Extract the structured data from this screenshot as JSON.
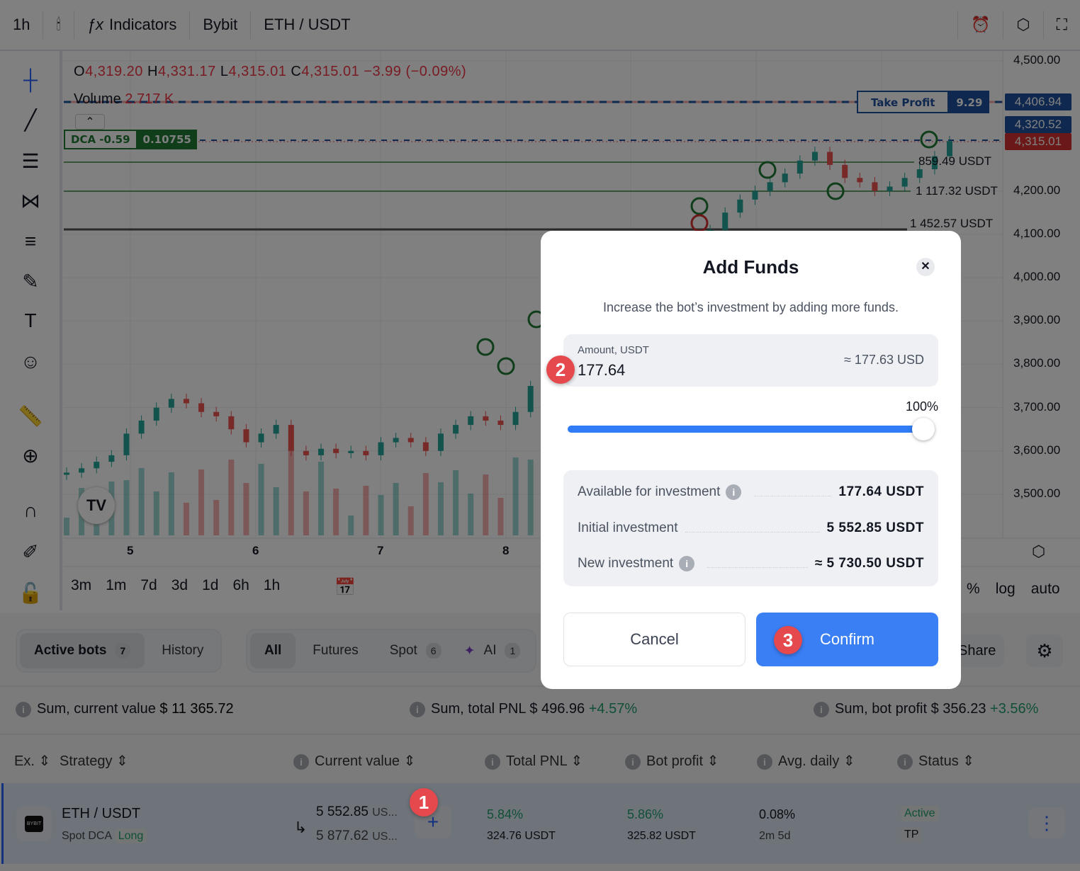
{
  "toolbar": {
    "interval": "1h",
    "indicators_label": "Indicators",
    "exchange": "Bybit",
    "symbol": "ETH / USDT"
  },
  "legend": {
    "o_label": "O",
    "o": "4,319.20",
    "h_label": "H",
    "h": "4,331.17",
    "l_label": "L",
    "l": "4,315.01",
    "c_label": "C",
    "c": "4,315.01",
    "change": "−3.99 (−0.09%)",
    "volume_label": "Volume",
    "volume": "2.717 K"
  },
  "orders": {
    "dca_label": "DCA -0.59",
    "dca_value": "0.10755",
    "tp_label": "Take Profit",
    "tp_value": "9.29",
    "levels": [
      "859.49 USDT",
      "1 117.32 USDT",
      "1 452.57 USDT"
    ]
  },
  "price_tags": {
    "tp": "4,406.94",
    "current_blue": "4,320.52",
    "current_red": "4,315.01"
  },
  "colors": {
    "up": "#26a69a",
    "down": "#ef5350",
    "accent": "#2962ff",
    "confirm": "#3b7ff5",
    "badge": "#e5484d",
    "dca": "#1f7a33"
  },
  "chart_data": {
    "type": "candlestick",
    "y_ticks": [
      "4,500.00",
      "4,200.00",
      "4,100.00",
      "4,000.00",
      "3,900.00",
      "3,800.00",
      "3,700.00",
      "3,600.00",
      "3,500.00"
    ],
    "x_ticks": [
      "5",
      "6",
      "7",
      "8"
    ],
    "ylim": [
      3500,
      4500
    ],
    "closes": [
      3550,
      3560,
      3575,
      3590,
      3640,
      3670,
      3700,
      3720,
      3710,
      3690,
      3680,
      3650,
      3620,
      3640,
      3660,
      3600,
      3590,
      3605,
      3595,
      3600,
      3590,
      3620,
      3630,
      3620,
      3600,
      3640,
      3660,
      3680,
      3670,
      3660,
      3690,
      3750,
      3820,
      3830,
      3810,
      3860,
      3900,
      3930,
      3960,
      3990,
      4020,
      4050,
      4080,
      4110,
      4150,
      4180,
      4200,
      4220,
      4240,
      4270,
      4290,
      4260,
      4230,
      4220,
      4200,
      4210,
      4230,
      4250,
      4280,
      4315
    ]
  },
  "ranges": [
    "3m",
    "1m",
    "7d",
    "3d",
    "1d",
    "6h",
    "1h"
  ],
  "axis_options": [
    "%",
    "log",
    "auto"
  ],
  "bots": {
    "tabs": [
      {
        "label": "Active bots",
        "count": "7"
      },
      {
        "label": "History"
      }
    ],
    "filters": [
      {
        "label": "All"
      },
      {
        "label": "Futures"
      },
      {
        "label": "Spot",
        "count": "6"
      },
      {
        "label": "AI",
        "count": "1"
      }
    ],
    "share": "Share",
    "sums": [
      {
        "label": "Sum, current value",
        "value": "$ 11 365.72"
      },
      {
        "label": "Sum, total PNL",
        "value": "$ 496.96",
        "pct": "+4.57%"
      },
      {
        "label": "Sum, bot profit",
        "value": "$ 356.23",
        "pct": "+3.56%"
      }
    ],
    "headers": [
      "Ex.",
      "Strategy",
      "Current value",
      "Total PNL",
      "Bot profit",
      "Avg. daily",
      "Status"
    ],
    "row": {
      "pair": "ETH / USDT",
      "type": "Spot DCA",
      "side": "Long",
      "exchange_logo": "BYBIT",
      "value1": "5 552.85",
      "value2": "5 877.62",
      "value_unit": "US...",
      "pnl_pct": "5.84%",
      "pnl": "324.76",
      "profit_pct": "5.86%",
      "profit": "325.82",
      "unit": "USDT",
      "avg": "0.08%",
      "age": "2m 5d",
      "status": "Active",
      "status2": "TP"
    }
  },
  "modal": {
    "title": "Add Funds",
    "subtitle": "Increase the bot’s investment by adding more funds.",
    "amount_label": "Amount, USDT",
    "amount": "177.64",
    "approx": "≈ 177.63 USD",
    "slider_pct": "100%",
    "slider_value": 100,
    "rows": [
      {
        "label": "Available for investment",
        "value": "177.64 USDT"
      },
      {
        "label": "Initial investment",
        "value": "5 552.85 USDT"
      },
      {
        "label": "New investment",
        "value": "≈ 5 730.50 USDT"
      }
    ],
    "cancel": "Cancel",
    "confirm": "Confirm"
  },
  "badges": [
    "1",
    "2",
    "3"
  ]
}
